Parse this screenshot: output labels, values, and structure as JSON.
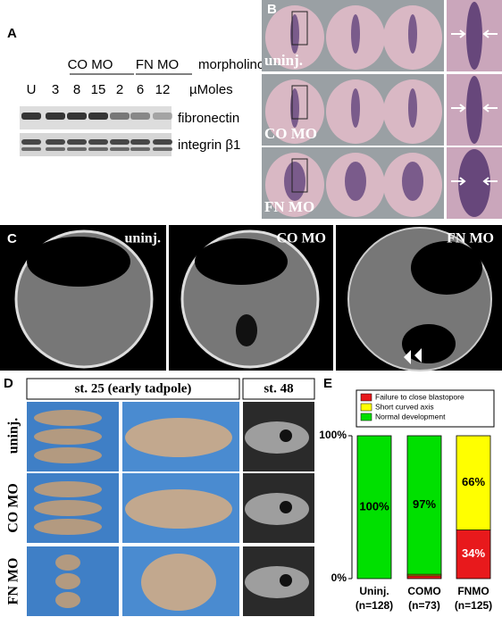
{
  "panels": {
    "a": {
      "label": "A",
      "groups": [
        "CO MO",
        "FN MO"
      ],
      "group_caption": "morpholino",
      "doses": [
        "U",
        "3",
        "8",
        "15",
        "2",
        "6",
        "12"
      ],
      "dose_caption": "µMoles",
      "rows": [
        "fibronectin",
        "integrin β1"
      ]
    },
    "b": {
      "label": "B",
      "rows": [
        "uninj.",
        "CO MO",
        "FN MO"
      ]
    },
    "c": {
      "label": "C",
      "panels": [
        "uninj.",
        "CO MO",
        "FN MO"
      ]
    },
    "d": {
      "label": "D",
      "headers": [
        "st. 25 (early tadpole)",
        "st. 48"
      ],
      "rows": [
        "uninj.",
        "CO MO",
        "FN MO"
      ]
    },
    "e": {
      "label": "E"
    }
  },
  "chart_data": {
    "type": "stacked_bar",
    "categories": [
      "Uninj.",
      "COMO",
      "FNMO"
    ],
    "category_counts": [
      "(n=128)",
      "(n=73)",
      "(n=125)"
    ],
    "series": [
      {
        "name": "Failure to close blastopore",
        "color": "#e8191c",
        "values": [
          0,
          2,
          34
        ],
        "value_labels": [
          null,
          null,
          "34%"
        ]
      },
      {
        "name": "Short curved axis",
        "color": "#ffff00",
        "values": [
          0,
          1,
          66
        ],
        "value_labels": [
          null,
          null,
          "66%"
        ]
      },
      {
        "name": "Normal development",
        "color": "#00e000",
        "values": [
          100,
          97,
          0
        ],
        "value_labels": [
          "100%",
          "97%",
          null
        ]
      }
    ],
    "ylim": [
      0,
      100
    ],
    "yticks": [
      {
        "value": 0,
        "label": "0%"
      },
      {
        "value": 100,
        "label": "100%"
      }
    ],
    "legend": "top"
  }
}
